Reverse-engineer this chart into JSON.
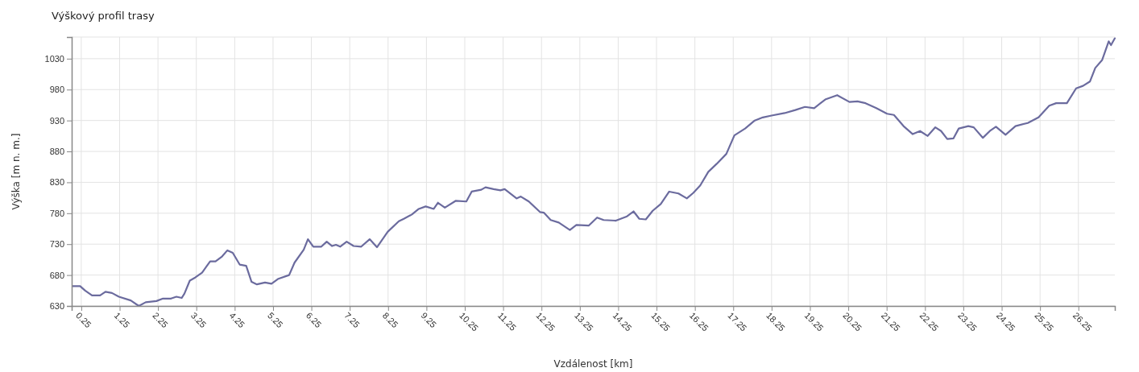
{
  "chart_data": {
    "type": "line",
    "title": "Výškový profil trasy",
    "xlabel": "Vzdálenost [km]",
    "ylabel": "Výška [m n. m.]",
    "xlim": [
      0,
      27.2
    ],
    "ylim": [
      630,
      1065
    ],
    "xticks": [
      0.25,
      1.25,
      2.25,
      3.25,
      4.25,
      5.25,
      6.25,
      7.25,
      8.25,
      9.25,
      10.25,
      11.25,
      12.25,
      13.25,
      14.25,
      15.25,
      16.25,
      17.25,
      18.25,
      19.25,
      20.25,
      21.25,
      22.25,
      23.25,
      24.25,
      25.25,
      26.25
    ],
    "yticks": [
      630,
      680,
      730,
      780,
      830,
      880,
      930,
      980,
      1030
    ],
    "grid": true,
    "marker": "none",
    "line_style": "solid",
    "series": [
      {
        "color": "#6b6b9e",
        "x": [
          0.02,
          0.22,
          0.35,
          0.53,
          0.74,
          0.88,
          1.05,
          1.23,
          1.54,
          1.75,
          1.93,
          2.21,
          2.38,
          2.59,
          2.73,
          2.87,
          2.94,
          3.08,
          3.22,
          3.4,
          3.61,
          3.75,
          3.92,
          4.06,
          4.2,
          4.38,
          4.55,
          4.69,
          4.83,
          5.04,
          5.21,
          5.39,
          5.67,
          5.81,
          6.05,
          6.16,
          6.3,
          6.51,
          6.65,
          6.79,
          6.89,
          7.0,
          7.17,
          7.35,
          7.55,
          7.77,
          7.96,
          8.24,
          8.53,
          8.66,
          8.87,
          9.05,
          9.23,
          9.44,
          9.55,
          9.73,
          10.01,
          10.29,
          10.43,
          10.68,
          10.79,
          11.0,
          11.18,
          11.29,
          11.6,
          11.71,
          11.92,
          12.21,
          12.31,
          12.49,
          12.7,
          12.99,
          13.16,
          13.48,
          13.7,
          13.87,
          14.19,
          14.48,
          14.65,
          14.8,
          14.97,
          15.15,
          15.36,
          15.58,
          15.82,
          16.04,
          16.21,
          16.39,
          16.6,
          16.82,
          17.07,
          17.28,
          17.56,
          17.81,
          18.02,
          18.25,
          18.59,
          18.87,
          19.12,
          19.36,
          19.65,
          19.96,
          20.28,
          20.49,
          20.7,
          20.98,
          21.26,
          21.44,
          21.69,
          21.93,
          22.12,
          22.32,
          22.52,
          22.67,
          22.83,
          22.99,
          23.13,
          23.38,
          23.52,
          23.76,
          23.94,
          24.1,
          24.35,
          24.61,
          24.93,
          25.21,
          25.49,
          25.67,
          25.95,
          26.19,
          26.37,
          26.55,
          26.69,
          26.87,
          27.04,
          27.1,
          27.2
        ],
        "values": [
          662,
          662,
          655,
          647,
          647,
          653,
          651,
          645,
          639,
          630,
          636,
          638,
          642,
          642,
          645,
          643,
          650,
          671,
          676,
          684,
          702,
          702,
          710,
          720,
          716,
          697,
          695,
          669,
          665,
          668,
          666,
          674,
          680,
          700,
          721,
          738,
          726,
          726,
          734,
          727,
          729,
          726,
          734,
          727,
          726,
          738,
          725,
          750,
          767,
          771,
          778,
          787,
          791,
          787,
          797,
          789,
          800,
          799,
          815,
          818,
          822,
          819,
          817,
          819,
          804,
          807,
          799,
          782,
          781,
          769,
          765,
          753,
          761,
          760,
          773,
          769,
          768,
          775,
          783,
          771,
          770,
          784,
          795,
          815,
          812,
          804,
          813,
          825,
          847,
          860,
          876,
          906,
          917,
          930,
          935,
          938,
          942,
          947,
          952,
          950,
          964,
          971,
          960,
          961,
          958,
          950,
          941,
          939,
          921,
          908,
          913,
          905,
          919,
          913,
          900,
          901,
          917,
          921,
          919,
          902,
          913,
          920,
          907,
          921,
          926,
          935,
          954,
          958,
          958,
          982,
          986,
          993,
          1015,
          1028,
          1058,
          1052,
          1063
        ]
      }
    ]
  }
}
